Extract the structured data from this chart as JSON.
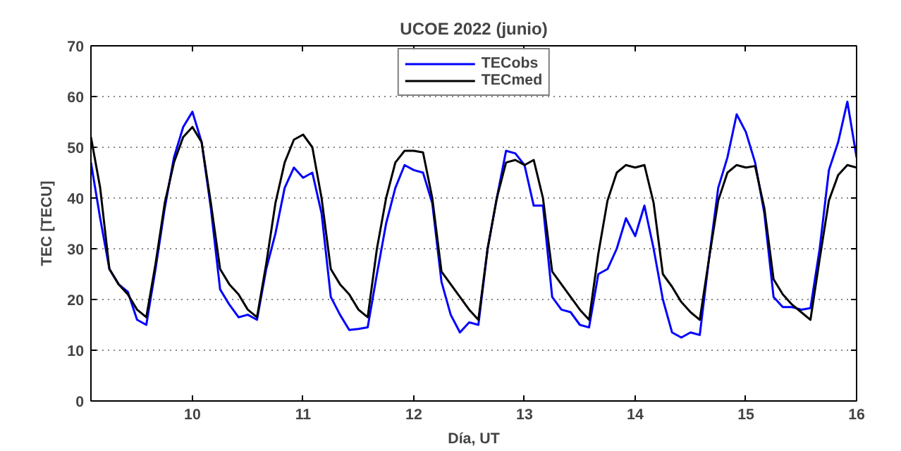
{
  "chart_data": {
    "type": "line",
    "title": "UCOE 2022 (junio)",
    "xlabel": "Día, UT",
    "ylabel": "TEC [TECU]",
    "x": [
      9.0833,
      9.1667,
      9.25,
      9.3333,
      9.4167,
      9.5,
      9.5833,
      9.6667,
      9.75,
      9.8333,
      9.9167,
      10,
      10.0833,
      10.1667,
      10.25,
      10.3333,
      10.4167,
      10.5,
      10.5833,
      10.6667,
      10.75,
      10.8333,
      10.9167,
      11,
      11.0833,
      11.1667,
      11.25,
      11.3333,
      11.4167,
      11.5,
      11.5833,
      11.6667,
      11.75,
      11.8333,
      11.9167,
      12,
      12.0833,
      12.1667,
      12.25,
      12.3333,
      12.4167,
      12.5,
      12.5833,
      12.6667,
      12.75,
      12.8333,
      12.9167,
      13,
      13.0833,
      13.1667,
      13.25,
      13.3333,
      13.4167,
      13.5,
      13.5833,
      13.6667,
      13.75,
      13.8333,
      13.9167,
      14,
      14.0833,
      14.1667,
      14.25,
      14.3333,
      14.4167,
      14.5,
      14.5833,
      14.6667,
      14.75,
      14.8333,
      14.9167,
      15,
      15.0833,
      15.1667,
      15.25,
      15.3333,
      15.4167,
      15.5,
      15.5833,
      15.6667,
      15.75,
      15.8333,
      15.9167,
      16
    ],
    "series": [
      {
        "name": "TECobs",
        "color": "#0000ff",
        "values": [
          47,
          36,
          26,
          23,
          21.5,
          16,
          15,
          26,
          38,
          48,
          54,
          57,
          51,
          38,
          22,
          19,
          16.5,
          17,
          16,
          26,
          33,
          42,
          46,
          44,
          45,
          37,
          20.5,
          17,
          14,
          14.2,
          14.5,
          25,
          35,
          42,
          46.5,
          45.5,
          45,
          39,
          23.5,
          17,
          13.5,
          15.5,
          15,
          30,
          40,
          49.3,
          48.8,
          46.5,
          38.5,
          38.5,
          20.5,
          18,
          17.5,
          15,
          14.5,
          25,
          26,
          30,
          36,
          32.5,
          38.5,
          30,
          20,
          13.5,
          12.5,
          13.5,
          13,
          28,
          42,
          48,
          56.5,
          53,
          47,
          37,
          20.5,
          18.5,
          18.5,
          18,
          18.3,
          30,
          45.5,
          51,
          59,
          48
        ]
      },
      {
        "name": "TECmed",
        "color": "#000000",
        "values": [
          52,
          42,
          26,
          23,
          21,
          18,
          16.5,
          27,
          39,
          47,
          52,
          54,
          51,
          39,
          26,
          23,
          21,
          18,
          16.5,
          27,
          39,
          47,
          51.5,
          52.5,
          50,
          40,
          26,
          23,
          21,
          18,
          16.5,
          30,
          40,
          47,
          49.3,
          49.3,
          49,
          40,
          25.5,
          23,
          20.5,
          18,
          16,
          30,
          40,
          47,
          47.5,
          46.5,
          47.5,
          40,
          25.5,
          23,
          20.5,
          18,
          16,
          29,
          39.5,
          45,
          46.5,
          46,
          46.5,
          39,
          25,
          22.5,
          19.5,
          17.5,
          16,
          28,
          39.5,
          45,
          46.5,
          46,
          46.3,
          38,
          24,
          21,
          19,
          17.5,
          16,
          28,
          39.5,
          44.5,
          46.5,
          46
        ]
      }
    ],
    "xlim": [
      9.0833,
      16
    ],
    "ylim": [
      0,
      70
    ],
    "xticks": [
      10,
      11,
      12,
      13,
      14,
      15,
      16
    ],
    "yticks": [
      0,
      10,
      20,
      30,
      40,
      50,
      60,
      70
    ],
    "grid": "y",
    "legend": "top",
    "line_style": "solid",
    "marker": "none"
  }
}
